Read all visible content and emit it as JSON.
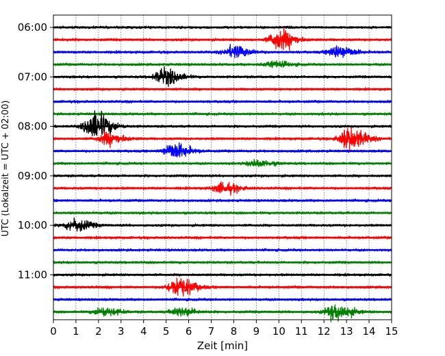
{
  "chart_data": {
    "type": "line",
    "title": "",
    "xlabel": "Zeit  [min]",
    "ylabel": "UTC (Lokalzeit = UTC + 02:00)",
    "xlim": [
      0,
      15
    ],
    "x_ticks": [
      "0",
      "1",
      "2",
      "3",
      "4",
      "5",
      "6",
      "7",
      "8",
      "9",
      "10",
      "11",
      "12",
      "13",
      "14",
      "15"
    ],
    "y_tick_labels": [
      "06:00",
      "07:00",
      "08:00",
      "09:00",
      "10:00",
      "11:00"
    ],
    "grid": "vertical dotted",
    "trace_colors": [
      "#000000",
      "#ff0000",
      "#0000ff",
      "#008000"
    ],
    "rows": [
      {
        "start": "06:00",
        "events": []
      },
      {
        "start": "06:15",
        "events": [
          {
            "t": 10.0,
            "amp": 1.0
          }
        ]
      },
      {
        "start": "06:30",
        "events": [
          {
            "t": 8.0,
            "amp": 0.6
          },
          {
            "t": 12.6,
            "amp": 0.6
          }
        ]
      },
      {
        "start": "06:45",
        "events": [
          {
            "t": 9.7,
            "amp": 0.3
          }
        ]
      },
      {
        "start": "07:00",
        "events": [
          {
            "t": 4.9,
            "amp": 0.8
          }
        ]
      },
      {
        "start": "07:15",
        "events": []
      },
      {
        "start": "07:30",
        "events": []
      },
      {
        "start": "07:45",
        "events": []
      },
      {
        "start": "08:00",
        "events": [
          {
            "t": 1.8,
            "amp": 1.4
          }
        ]
      },
      {
        "start": "08:15",
        "events": [
          {
            "t": 2.4,
            "amp": 0.6
          },
          {
            "t": 13.1,
            "amp": 1.1
          }
        ]
      },
      {
        "start": "08:30",
        "events": [
          {
            "t": 5.3,
            "amp": 0.8
          }
        ]
      },
      {
        "start": "08:45",
        "events": [
          {
            "t": 9.0,
            "amp": 0.3
          }
        ]
      },
      {
        "start": "09:00",
        "events": []
      },
      {
        "start": "09:15",
        "events": [
          {
            "t": 7.5,
            "amp": 0.5
          }
        ]
      },
      {
        "start": "09:30",
        "events": []
      },
      {
        "start": "09:45",
        "events": []
      },
      {
        "start": "10:00",
        "events": [
          {
            "t": 0.9,
            "amp": 0.6
          }
        ]
      },
      {
        "start": "10:15",
        "events": []
      },
      {
        "start": "10:30",
        "events": []
      },
      {
        "start": "10:45",
        "events": []
      },
      {
        "start": "11:00",
        "events": []
      },
      {
        "start": "11:15",
        "events": [
          {
            "t": 5.5,
            "amp": 1.0
          }
        ]
      },
      {
        "start": "11:30",
        "events": []
      },
      {
        "start": "11:45",
        "events": [
          {
            "t": 2.2,
            "amp": 0.4
          },
          {
            "t": 5.6,
            "amp": 0.4
          },
          {
            "t": 12.5,
            "amp": 0.8
          }
        ]
      }
    ]
  }
}
